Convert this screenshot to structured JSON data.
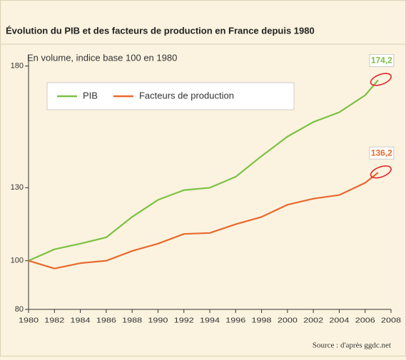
{
  "chart_data": {
    "type": "line",
    "title": "Évolution du PIB et des facteurs de production en France depuis 1980",
    "subtitle": "En volume, indice base 100 en 1980",
    "source": "Source : d'après ggdc.net",
    "x": [
      1980,
      1982,
      1984,
      1986,
      1988,
      1990,
      1992,
      1994,
      1996,
      1998,
      2000,
      2002,
      2004,
      2006,
      2007
    ],
    "series": [
      {
        "name": "PIB",
        "color": "#7cc142",
        "end_label": "174,2",
        "values": [
          100,
          104.7,
          107,
          109.6,
          118,
          125,
          129,
          130,
          134.5,
          143,
          151,
          157,
          161,
          168,
          174.2
        ]
      },
      {
        "name": "Facteurs de production",
        "color": "#e8692e",
        "end_label": "136,2",
        "values": [
          100,
          96.8,
          99,
          100,
          104,
          107,
          111,
          111.4,
          115,
          118,
          123,
          125.5,
          127,
          132,
          136.2
        ]
      }
    ],
    "xlim": [
      1980,
      2008
    ],
    "xticks": [
      1980,
      1982,
      1984,
      1986,
      1988,
      1990,
      1992,
      1994,
      1996,
      1998,
      2000,
      2002,
      2004,
      2006,
      2008
    ],
    "ylim": [
      80,
      184
    ],
    "yticks": [
      80,
      100,
      130,
      180
    ],
    "legend": "top-left"
  }
}
